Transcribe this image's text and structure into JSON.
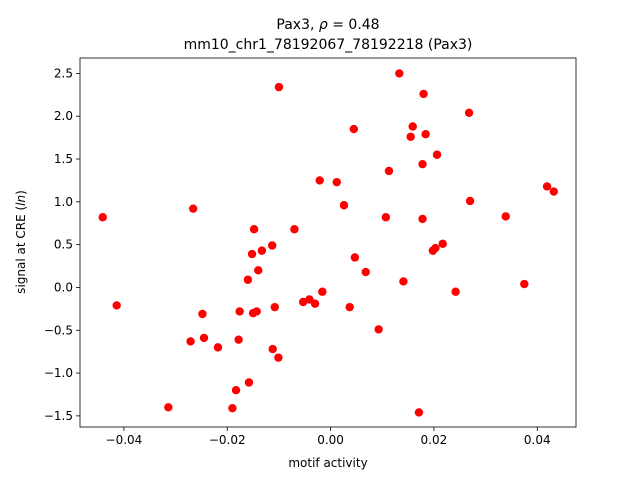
{
  "chart_data": {
    "type": "scatter",
    "title_line1_pre": "Pax3, ",
    "title_line1_rho": "ρ",
    "title_line1_post": " = 0.48",
    "title_line2": "mm10_chr1_78192067_78192218 (Pax3)",
    "xlabel": "motif activity",
    "ylabel_pre": "signal at CRE (",
    "ylabel_var": "ln",
    "ylabel_post": ")",
    "xlim": [
      -0.0485,
      0.0475
    ],
    "ylim": [
      -1.63,
      2.68
    ],
    "xticks": [
      -0.04,
      -0.02,
      0.0,
      0.02,
      0.04
    ],
    "xtick_labels": [
      "−0.04",
      "−0.02",
      "0.00",
      "0.02",
      "0.04"
    ],
    "yticks": [
      -1.5,
      -1.0,
      -0.5,
      0.0,
      0.5,
      1.0,
      1.5,
      2.0,
      2.5
    ],
    "ytick_labels": [
      "−1.5",
      "−1.0",
      "−0.5",
      "0.0",
      "0.5",
      "1.0",
      "1.5",
      "2.0",
      "2.5"
    ],
    "marker_color": "#ff0000",
    "grid": false,
    "points": [
      {
        "x": -0.0441,
        "y": 0.82
      },
      {
        "x": -0.0414,
        "y": -0.21
      },
      {
        "x": -0.0314,
        "y": -1.4
      },
      {
        "x": -0.0271,
        "y": -0.63
      },
      {
        "x": -0.0266,
        "y": 0.92
      },
      {
        "x": -0.0248,
        "y": -0.31
      },
      {
        "x": -0.0245,
        "y": -0.59
      },
      {
        "x": -0.0218,
        "y": -0.7
      },
      {
        "x": -0.019,
        "y": -1.41
      },
      {
        "x": -0.0183,
        "y": -1.2
      },
      {
        "x": -0.0178,
        "y": -0.61
      },
      {
        "x": -0.0176,
        "y": -0.28
      },
      {
        "x": -0.016,
        "y": 0.09
      },
      {
        "x": -0.0158,
        "y": -1.11
      },
      {
        "x": -0.0152,
        "y": 0.39
      },
      {
        "x": -0.015,
        "y": -0.3
      },
      {
        "x": -0.0148,
        "y": 0.68
      },
      {
        "x": -0.0143,
        "y": -0.28
      },
      {
        "x": -0.014,
        "y": 0.2
      },
      {
        "x": -0.0133,
        "y": 0.43
      },
      {
        "x": -0.0113,
        "y": 0.49
      },
      {
        "x": -0.0112,
        "y": -0.72
      },
      {
        "x": -0.0108,
        "y": -0.23
      },
      {
        "x": -0.0101,
        "y": -0.82
      },
      {
        "x": -0.01,
        "y": 2.34
      },
      {
        "x": -0.007,
        "y": 0.68
      },
      {
        "x": -0.0053,
        "y": -0.17
      },
      {
        "x": -0.0041,
        "y": -0.14
      },
      {
        "x": -0.003,
        "y": -0.19
      },
      {
        "x": -0.0021,
        "y": 1.25
      },
      {
        "x": -0.0016,
        "y": -0.05
      },
      {
        "x": 0.0012,
        "y": 1.23
      },
      {
        "x": 0.0026,
        "y": 0.96
      },
      {
        "x": 0.0037,
        "y": -0.23
      },
      {
        "x": 0.0045,
        "y": 1.85
      },
      {
        "x": 0.0047,
        "y": 0.35
      },
      {
        "x": 0.0068,
        "y": 0.18
      },
      {
        "x": 0.0093,
        "y": -0.49
      },
      {
        "x": 0.0107,
        "y": 0.82
      },
      {
        "x": 0.0113,
        "y": 1.36
      },
      {
        "x": 0.0133,
        "y": 2.5
      },
      {
        "x": 0.0141,
        "y": 0.07
      },
      {
        "x": 0.0155,
        "y": 1.76
      },
      {
        "x": 0.0159,
        "y": 1.88
      },
      {
        "x": 0.0171,
        "y": -1.46
      },
      {
        "x": 0.0178,
        "y": 0.8
      },
      {
        "x": 0.0178,
        "y": 1.44
      },
      {
        "x": 0.018,
        "y": 2.26
      },
      {
        "x": 0.0184,
        "y": 1.79
      },
      {
        "x": 0.0198,
        "y": 0.43
      },
      {
        "x": 0.0203,
        "y": 0.46
      },
      {
        "x": 0.0206,
        "y": 1.55
      },
      {
        "x": 0.0217,
        "y": 0.51
      },
      {
        "x": 0.0242,
        "y": -0.05
      },
      {
        "x": 0.0268,
        "y": 2.04
      },
      {
        "x": 0.027,
        "y": 1.01
      },
      {
        "x": 0.0339,
        "y": 0.83
      },
      {
        "x": 0.0375,
        "y": 0.04
      },
      {
        "x": 0.0419,
        "y": 1.18
      },
      {
        "x": 0.0432,
        "y": 1.12
      }
    ]
  }
}
